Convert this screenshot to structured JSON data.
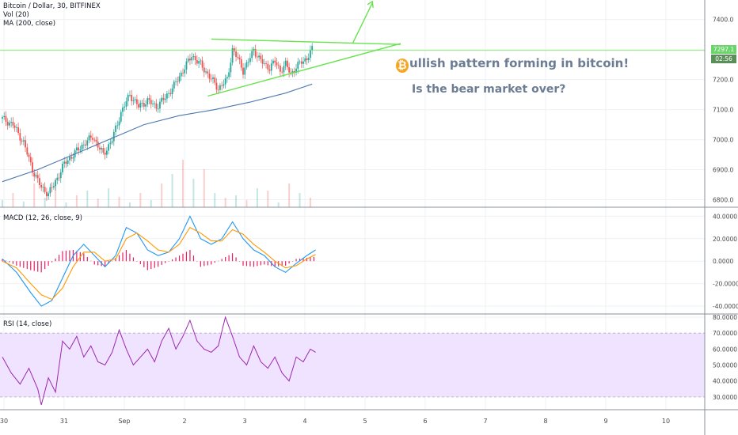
{
  "legend": {
    "symbol": "Bitcoin / Dollar, 30, BITFINEX",
    "vol": "Vol (20)",
    "ma": "MA (200, close)",
    "macd": "MACD (12, 26, close, 9)",
    "rsi": "RSI (14, close)"
  },
  "price_tags": {
    "last": "7297.1",
    "countdown": "02:56"
  },
  "annotations": {
    "headline_rest": "ullish pattern forming in bitcoin!",
    "btc_glyph": "₿",
    "question": "Is the bear market over?"
  },
  "colors": {
    "up": "#26a69a",
    "down": "#ef5350",
    "ma": "#4a78b0",
    "trend": "#66e34d",
    "macd": "#2196f3",
    "signal": "#ff9800",
    "hist": "#e91e63",
    "rsi": "#9c27b0",
    "rsi_band": "#efe3ff"
  },
  "chart_data": [
    {
      "type": "candlestick",
      "title": "Bitcoin / Dollar, 30, BITFINEX",
      "x_ticks": [
        "30",
        "31",
        "Sep",
        "2",
        "3",
        "4",
        "5",
        "6",
        "7",
        "8",
        "9",
        "10"
      ],
      "y_ticks": [
        "7400.0",
        "7300.0",
        "7200.0",
        "7100.0",
        "7000.0",
        "6900.0",
        "6800.0"
      ],
      "ylim": [
        6775,
        7465
      ],
      "last_price": 7297.1,
      "close_anchors": [
        [
          0,
          7070
        ],
        [
          6,
          7050
        ],
        [
          12,
          6990
        ],
        [
          17,
          6900
        ],
        [
          22,
          6840
        ],
        [
          26,
          6820
        ],
        [
          30,
          6860
        ],
        [
          35,
          6920
        ],
        [
          40,
          6950
        ],
        [
          45,
          6980
        ],
        [
          51,
          7010
        ],
        [
          57,
          6950
        ],
        [
          62,
          7000
        ],
        [
          67,
          7090
        ],
        [
          72,
          7150
        ],
        [
          77,
          7110
        ],
        [
          82,
          7130
        ],
        [
          87,
          7110
        ],
        [
          92,
          7140
        ],
        [
          97,
          7180
        ],
        [
          102,
          7230
        ],
        [
          107,
          7280
        ],
        [
          112,
          7250
        ],
        [
          117,
          7210
        ],
        [
          122,
          7170
        ],
        [
          127,
          7200
        ],
        [
          130,
          7300
        ],
        [
          133,
          7270
        ],
        [
          136,
          7230
        ],
        [
          139,
          7260
        ],
        [
          142,
          7300
        ],
        [
          145,
          7270
        ],
        [
          148,
          7250
        ],
        [
          151,
          7240
        ],
        [
          154,
          7260
        ],
        [
          157,
          7230
        ],
        [
          160,
          7250
        ],
        [
          163,
          7220
        ],
        [
          166,
          7240
        ],
        [
          169,
          7260
        ],
        [
          172,
          7270
        ],
        [
          175,
          7300
        ]
      ],
      "ma200": [
        [
          0,
          6860
        ],
        [
          20,
          6900
        ],
        [
          40,
          6950
        ],
        [
          60,
          7000
        ],
        [
          80,
          7050
        ],
        [
          100,
          7080
        ],
        [
          120,
          7100
        ],
        [
          140,
          7125
        ],
        [
          160,
          7155
        ],
        [
          175,
          7185
        ]
      ],
      "trendlines": [
        {
          "name": "resistance",
          "points": [
            [
              118,
              7335
            ],
            [
              225,
              7317
            ]
          ]
        },
        {
          "name": "support",
          "points": [
            [
              116,
              7145
            ],
            [
              225,
              7320
            ]
          ]
        },
        {
          "name": "breakout-arrow",
          "points": [
            [
              198,
              7322
            ],
            [
              209,
              7455
            ]
          ]
        }
      ]
    },
    {
      "type": "bar",
      "title": "Vol (20)",
      "values_relative": [
        0.15,
        0.3,
        0.12,
        0.5,
        0.2,
        0.6,
        0.1,
        0.25,
        0.35,
        0.18,
        0.4,
        0.22,
        0.1,
        0.3,
        0.15,
        0.5,
        0.7,
        1.0,
        0.6,
        0.8,
        0.3,
        0.2,
        0.25,
        0.15,
        0.4,
        0.35,
        0.1,
        0.5,
        0.3,
        0.2
      ]
    },
    {
      "type": "line",
      "title": "MACD (12, 26, close, 9)",
      "y_ticks": [
        "40.0000",
        "20.0000",
        "0.0000",
        "-20.0000",
        "-40.0000"
      ],
      "ylim": [
        -47,
        48
      ],
      "series": [
        {
          "name": "MACD",
          "points": [
            [
              0,
              2
            ],
            [
              8,
              -10
            ],
            [
              16,
              -28
            ],
            [
              22,
              -40
            ],
            [
              28,
              -35
            ],
            [
              34,
              -15
            ],
            [
              40,
              5
            ],
            [
              46,
              15
            ],
            [
              52,
              5
            ],
            [
              58,
              -5
            ],
            [
              64,
              5
            ],
            [
              70,
              30
            ],
            [
              76,
              25
            ],
            [
              82,
              10
            ],
            [
              88,
              5
            ],
            [
              94,
              8
            ],
            [
              100,
              20
            ],
            [
              106,
              40
            ],
            [
              112,
              20
            ],
            [
              118,
              15
            ],
            [
              124,
              20
            ],
            [
              130,
              35
            ],
            [
              136,
              20
            ],
            [
              142,
              10
            ],
            [
              148,
              5
            ],
            [
              154,
              -5
            ],
            [
              160,
              -10
            ],
            [
              166,
              -2
            ],
            [
              172,
              5
            ],
            [
              177,
              10
            ]
          ]
        },
        {
          "name": "Signal",
          "points": [
            [
              0,
              0
            ],
            [
              8,
              -6
            ],
            [
              16,
              -20
            ],
            [
              22,
              -30
            ],
            [
              28,
              -34
            ],
            [
              34,
              -24
            ],
            [
              40,
              -5
            ],
            [
              46,
              8
            ],
            [
              52,
              8
            ],
            [
              58,
              0
            ],
            [
              64,
              2
            ],
            [
              70,
              20
            ],
            [
              76,
              25
            ],
            [
              82,
              18
            ],
            [
              88,
              10
            ],
            [
              94,
              8
            ],
            [
              100,
              15
            ],
            [
              106,
              30
            ],
            [
              112,
              25
            ],
            [
              118,
              18
            ],
            [
              124,
              18
            ],
            [
              130,
              28
            ],
            [
              136,
              24
            ],
            [
              142,
              15
            ],
            [
              148,
              8
            ],
            [
              154,
              0
            ],
            [
              160,
              -6
            ],
            [
              166,
              -4
            ],
            [
              172,
              2
            ],
            [
              177,
              6
            ]
          ]
        }
      ]
    },
    {
      "type": "line",
      "title": "RSI (14, close)",
      "y_ticks": [
        "80.0000",
        "70.0000",
        "60.0000",
        "50.0000",
        "40.0000",
        "30.0000"
      ],
      "ylim": [
        22,
        82
      ],
      "bands": [
        30,
        70
      ],
      "points": [
        [
          0,
          55
        ],
        [
          5,
          45
        ],
        [
          10,
          38
        ],
        [
          15,
          48
        ],
        [
          20,
          35
        ],
        [
          22,
          25
        ],
        [
          26,
          42
        ],
        [
          30,
          33
        ],
        [
          34,
          65
        ],
        [
          38,
          60
        ],
        [
          42,
          68
        ],
        [
          46,
          55
        ],
        [
          50,
          62
        ],
        [
          54,
          52
        ],
        [
          58,
          50
        ],
        [
          62,
          58
        ],
        [
          66,
          72
        ],
        [
          70,
          60
        ],
        [
          74,
          50
        ],
        [
          78,
          55
        ],
        [
          82,
          60
        ],
        [
          86,
          52
        ],
        [
          90,
          65
        ],
        [
          94,
          73
        ],
        [
          98,
          60
        ],
        [
          102,
          68
        ],
        [
          106,
          78
        ],
        [
          110,
          65
        ],
        [
          114,
          60
        ],
        [
          118,
          58
        ],
        [
          122,
          62
        ],
        [
          126,
          80
        ],
        [
          130,
          68
        ],
        [
          134,
          55
        ],
        [
          138,
          50
        ],
        [
          142,
          62
        ],
        [
          146,
          52
        ],
        [
          150,
          48
        ],
        [
          154,
          55
        ],
        [
          158,
          45
        ],
        [
          162,
          40
        ],
        [
          166,
          55
        ],
        [
          170,
          52
        ],
        [
          174,
          60
        ],
        [
          177,
          58
        ]
      ]
    }
  ]
}
